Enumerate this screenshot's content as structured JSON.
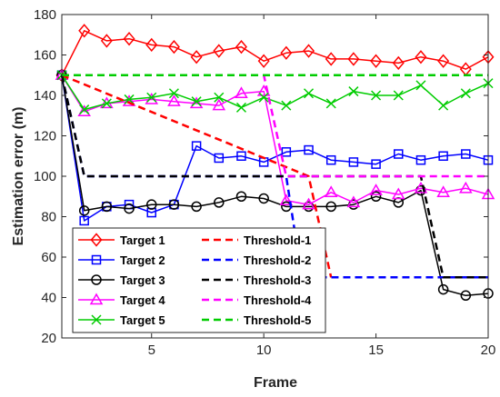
{
  "chart_data": {
    "type": "line",
    "title": "",
    "xlabel": "Frame",
    "ylabel": "Estimation error (m)",
    "xlim": [
      1,
      20
    ],
    "ylim": [
      20,
      180
    ],
    "xticks": [
      5,
      10,
      15,
      20
    ],
    "yticks": [
      20,
      40,
      60,
      80,
      100,
      120,
      140,
      160,
      180
    ],
    "grid": false,
    "legend_position": "bottom-left",
    "legend_columns": 2,
    "series": [
      {
        "name": "Target 1",
        "kind": "target",
        "color": "#ff0000",
        "marker": "diamond",
        "dash": "solid",
        "x": [
          1,
          2,
          3,
          4,
          5,
          6,
          7,
          8,
          9,
          10,
          11,
          12,
          13,
          14,
          15,
          16,
          17,
          18,
          19,
          20
        ],
        "y": [
          150,
          172,
          167,
          168,
          165,
          164,
          159,
          162,
          164,
          157,
          161,
          162,
          158,
          158,
          157,
          156,
          159,
          157,
          153,
          159
        ]
      },
      {
        "name": "Target 2",
        "kind": "target",
        "color": "#0000ff",
        "marker": "square",
        "dash": "solid",
        "x": [
          1,
          2,
          3,
          4,
          5,
          6,
          7,
          8,
          9,
          10,
          11,
          12,
          13,
          14,
          15,
          16,
          17,
          18,
          19,
          20
        ],
        "y": [
          150,
          78,
          85,
          86,
          82,
          86,
          115,
          109,
          110,
          107,
          112,
          113,
          108,
          107,
          106,
          111,
          108,
          110,
          111,
          108
        ]
      },
      {
        "name": "Target 3",
        "kind": "target",
        "color": "#000000",
        "marker": "circle",
        "dash": "solid",
        "x": [
          1,
          2,
          3,
          4,
          5,
          6,
          7,
          8,
          9,
          10,
          11,
          12,
          13,
          14,
          15,
          16,
          17,
          18,
          19,
          20
        ],
        "y": [
          150,
          83,
          85,
          84,
          86,
          86,
          85,
          87,
          90,
          89,
          85,
          85,
          85,
          86,
          90,
          87,
          93,
          44,
          41,
          42
        ]
      },
      {
        "name": "Target 4",
        "kind": "target",
        "color": "#ff00ff",
        "marker": "triangle",
        "dash": "solid",
        "x": [
          1,
          2,
          3,
          4,
          5,
          6,
          7,
          8,
          9,
          10,
          11,
          12,
          13,
          14,
          15,
          16,
          17,
          18,
          19,
          20
        ],
        "y": [
          150,
          132,
          136,
          137,
          138,
          137,
          136,
          135,
          141,
          142,
          88,
          86,
          92,
          87,
          93,
          91,
          94,
          92,
          94,
          91
        ]
      },
      {
        "name": "Target 5",
        "kind": "target",
        "color": "#00cc00",
        "marker": "x",
        "dash": "solid",
        "x": [
          1,
          2,
          3,
          4,
          5,
          6,
          7,
          8,
          9,
          10,
          11,
          12,
          13,
          14,
          15,
          16,
          17,
          18,
          19,
          20
        ],
        "y": [
          150,
          133,
          136,
          138,
          139,
          141,
          137,
          139,
          134,
          139,
          135,
          141,
          136,
          142,
          140,
          140,
          145,
          135,
          141,
          146
        ]
      },
      {
        "name": "Threshold-1",
        "kind": "threshold",
        "color": "#ff0000",
        "marker": "none",
        "dash": "dashed",
        "x": [
          1,
          12,
          13
        ],
        "y": [
          150,
          100,
          50
        ]
      },
      {
        "name": "Threshold-2",
        "kind": "threshold",
        "color": "#0000ff",
        "marker": "none",
        "dash": "dashed",
        "x": [
          1,
          2,
          10,
          11,
          11.7,
          13,
          20
        ],
        "y": [
          150,
          100,
          100,
          100,
          50,
          50,
          50
        ]
      },
      {
        "name": "Threshold-3",
        "kind": "threshold",
        "color": "#000000",
        "marker": "none",
        "dash": "dashed",
        "x": [
          1,
          2,
          17,
          18,
          20
        ],
        "y": [
          150,
          100,
          100,
          50,
          50
        ]
      },
      {
        "name": "Threshold-4",
        "kind": "threshold",
        "color": "#ff00ff",
        "marker": "none",
        "dash": "dashed",
        "x": [
          1,
          2,
          10,
          11,
          20
        ],
        "y": [
          150,
          150,
          150,
          100,
          100
        ]
      },
      {
        "name": "Threshold-5",
        "kind": "threshold",
        "color": "#00cc00",
        "marker": "none",
        "dash": "dashed",
        "x": [
          1,
          20
        ],
        "y": [
          150,
          150
        ]
      }
    ]
  }
}
